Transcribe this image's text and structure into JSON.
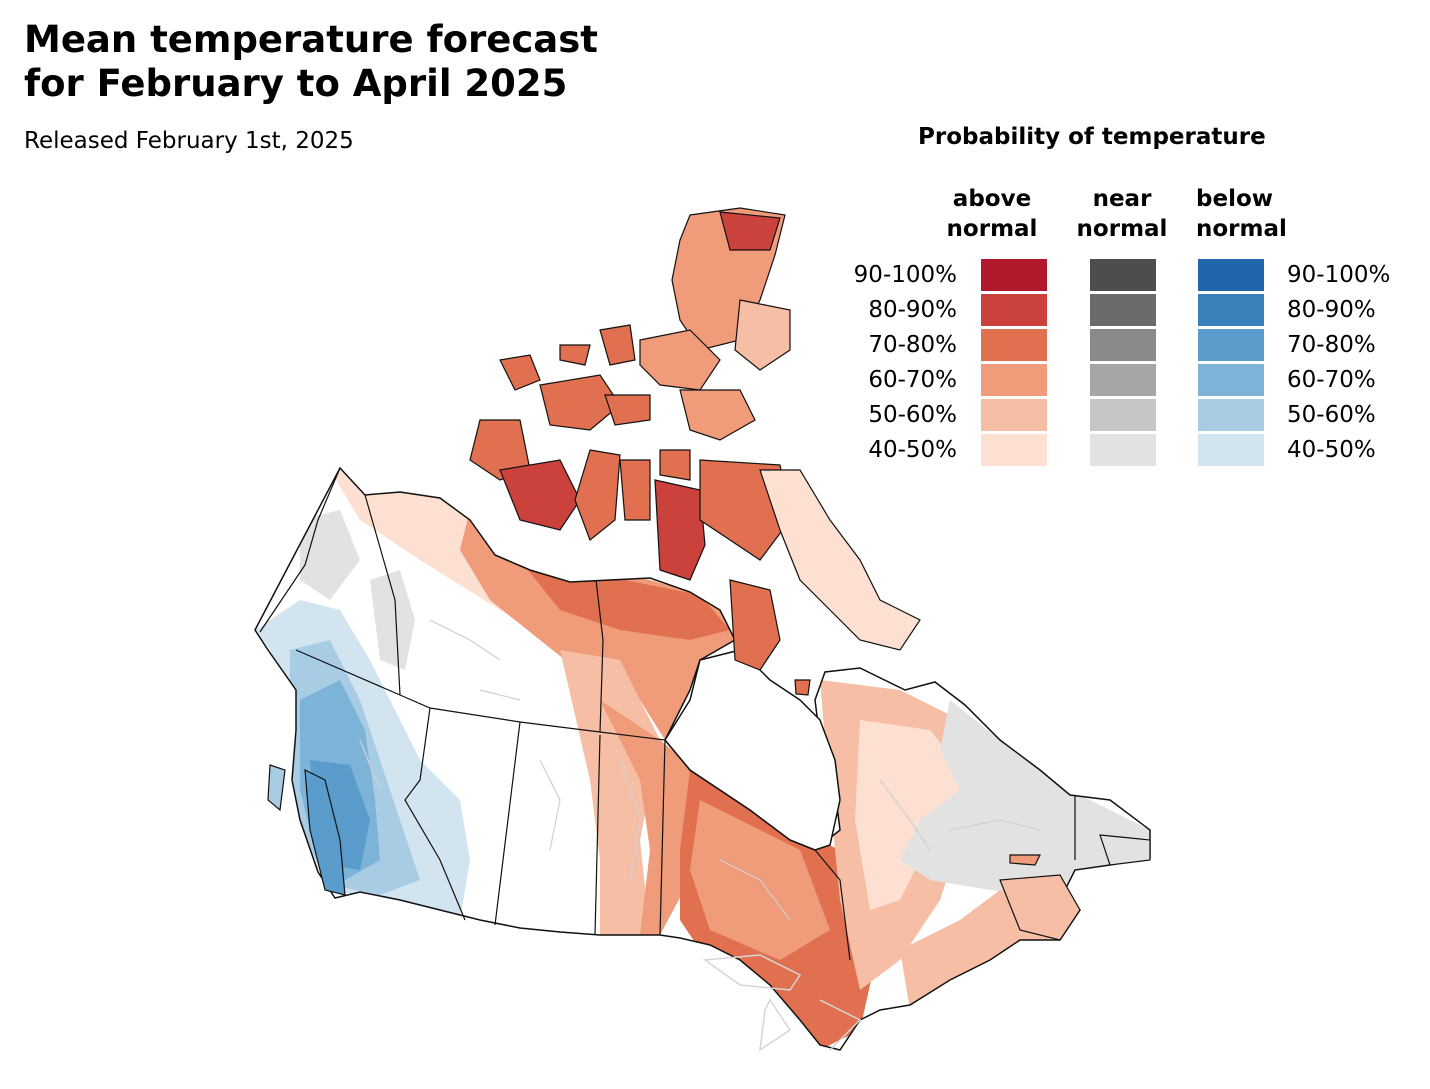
{
  "header": {
    "title_line1": "Mean temperature forecast",
    "title_line2": "for February to April 2025",
    "subtitle": "Released February 1st, 2025"
  },
  "legend": {
    "title": "Probability of temperature",
    "columns": [
      {
        "line1": "above",
        "line2": "normal"
      },
      {
        "line1": "near",
        "line2": "normal"
      },
      {
        "line1": "below",
        "line2": "normal"
      }
    ],
    "ranges": [
      "90-100%",
      "80-90%",
      "70-80%",
      "60-70%",
      "50-60%",
      "40-50%"
    ],
    "colors": {
      "above": [
        "#b2182b",
        "#cb413c",
        "#e0704f",
        "#f09b79",
        "#f6bea4",
        "#fde0d2"
      ],
      "near": [
        "#4d4d4d",
        "#6b6b6b",
        "#8a8a8a",
        "#a6a6a6",
        "#c6c6c6",
        "#e2e2e2"
      ],
      "below": [
        "#2166ac",
        "#3a80bb",
        "#5a9ccb",
        "#7db3d7",
        "#a8cce4",
        "#d1e4f0"
      ]
    }
  }
}
